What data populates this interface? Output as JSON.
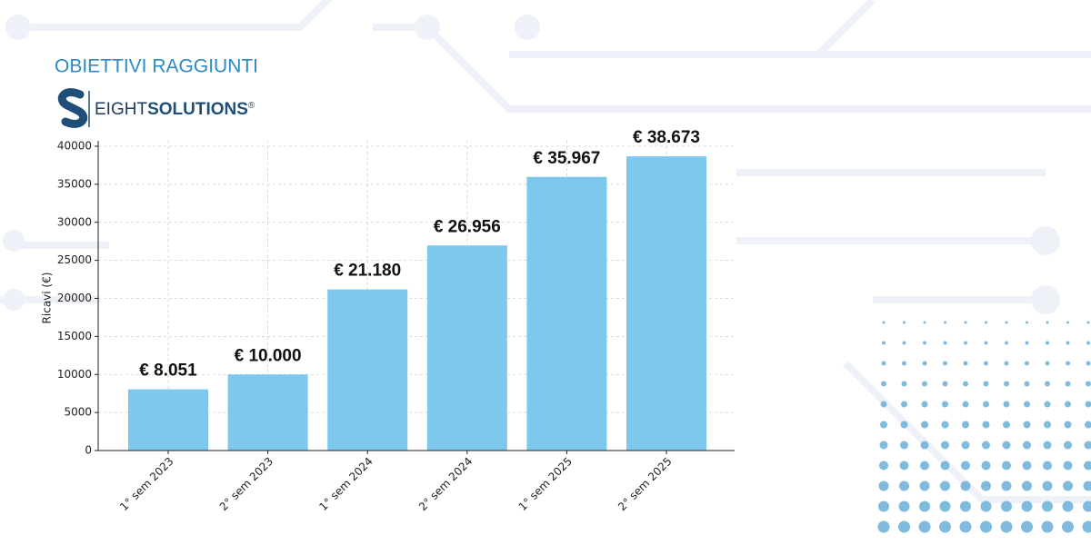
{
  "heading": "OBIETTIVI RAGGIUNTI",
  "logo": {
    "light": "EIGHT",
    "bold": "SOLUTIONS",
    "mark": "®"
  },
  "chart_data": {
    "type": "bar",
    "y_label": "Ricavi (€)",
    "categories": [
      "1° sem 2023",
      "2° sem 2023",
      "1° sem 2024",
      "2° sem 2024",
      "1° sem 2025",
      "2° sem 2025"
    ],
    "values": [
      8051,
      10000,
      21180,
      26956,
      35967,
      38673
    ],
    "value_labels": [
      "€ 8.051",
      "€ 10.000",
      "€ 21.180",
      "€ 26.956",
      "€ 35.967",
      "€ 38.673"
    ],
    "color": "#7ec8ee",
    "ylim": [
      0,
      40000
    ],
    "yticks": [
      0,
      5000,
      10000,
      15000,
      20000,
      25000,
      30000,
      35000,
      40000
    ],
    "grid": true
  }
}
